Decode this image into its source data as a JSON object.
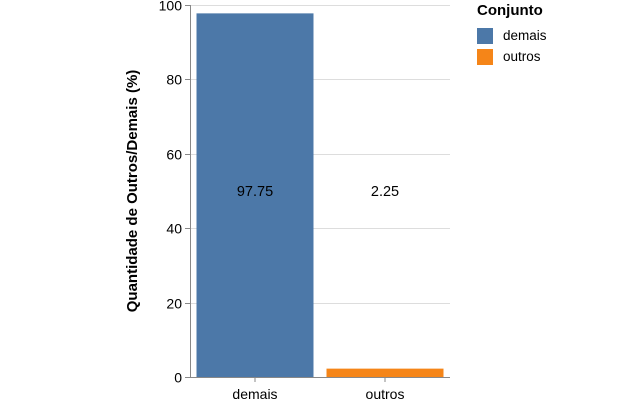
{
  "chart_data": {
    "type": "bar",
    "categories": [
      "demais",
      "outros"
    ],
    "values": [
      97.75,
      2.25
    ],
    "value_labels": [
      "97.75",
      "2.25"
    ],
    "colors": [
      "#4c78a8",
      "#f58518"
    ],
    "ylabel": "Quantidade de Outros/Demais (%)",
    "xlabel": "",
    "ylim": [
      0,
      100
    ],
    "yticks": [
      0,
      20,
      40,
      60,
      80,
      100
    ],
    "ytick_labels": [
      "0",
      "20",
      "40",
      "60",
      "80",
      "100"
    ],
    "grid": true,
    "legend": {
      "title": "Conjunto",
      "position": "top-right",
      "entries": [
        "demais",
        "outros"
      ]
    }
  }
}
